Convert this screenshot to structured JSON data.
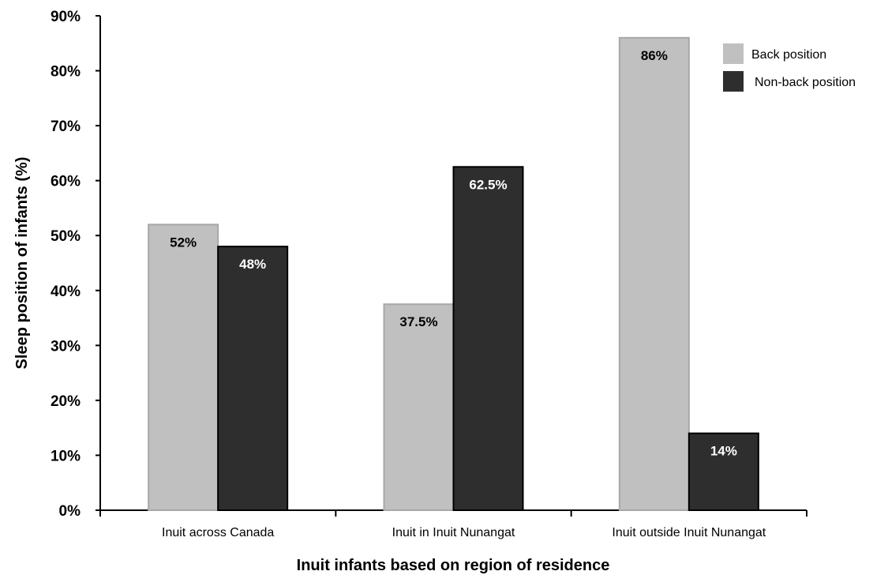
{
  "chart_data": {
    "type": "bar",
    "xlabel": "Inuit infants based on region of residence",
    "ylabel": "Sleep position of infants (%)",
    "ylim": [
      0,
      90
    ],
    "yticks": [
      "0%",
      "10%",
      "20%",
      "30%",
      "40%",
      "50%",
      "60%",
      "70%",
      "80%",
      "90%"
    ],
    "categories": [
      "Inuit across Canada",
      "Inuit in Inuit Nunangat",
      "Inuit outside Inuit Nunangat"
    ],
    "series": [
      {
        "name": "Back position",
        "color": "#c0c0c0",
        "values": [
          52,
          37.5,
          86
        ],
        "labels": [
          "52%",
          "37.5%",
          "86%"
        ]
      },
      {
        "name": "Non-back position",
        "color": "#2e2e2e",
        "values": [
          48,
          62.5,
          14
        ],
        "labels": [
          "48%",
          "62.5%",
          "14%"
        ]
      }
    ],
    "legend": "top-right",
    "grid": false
  }
}
